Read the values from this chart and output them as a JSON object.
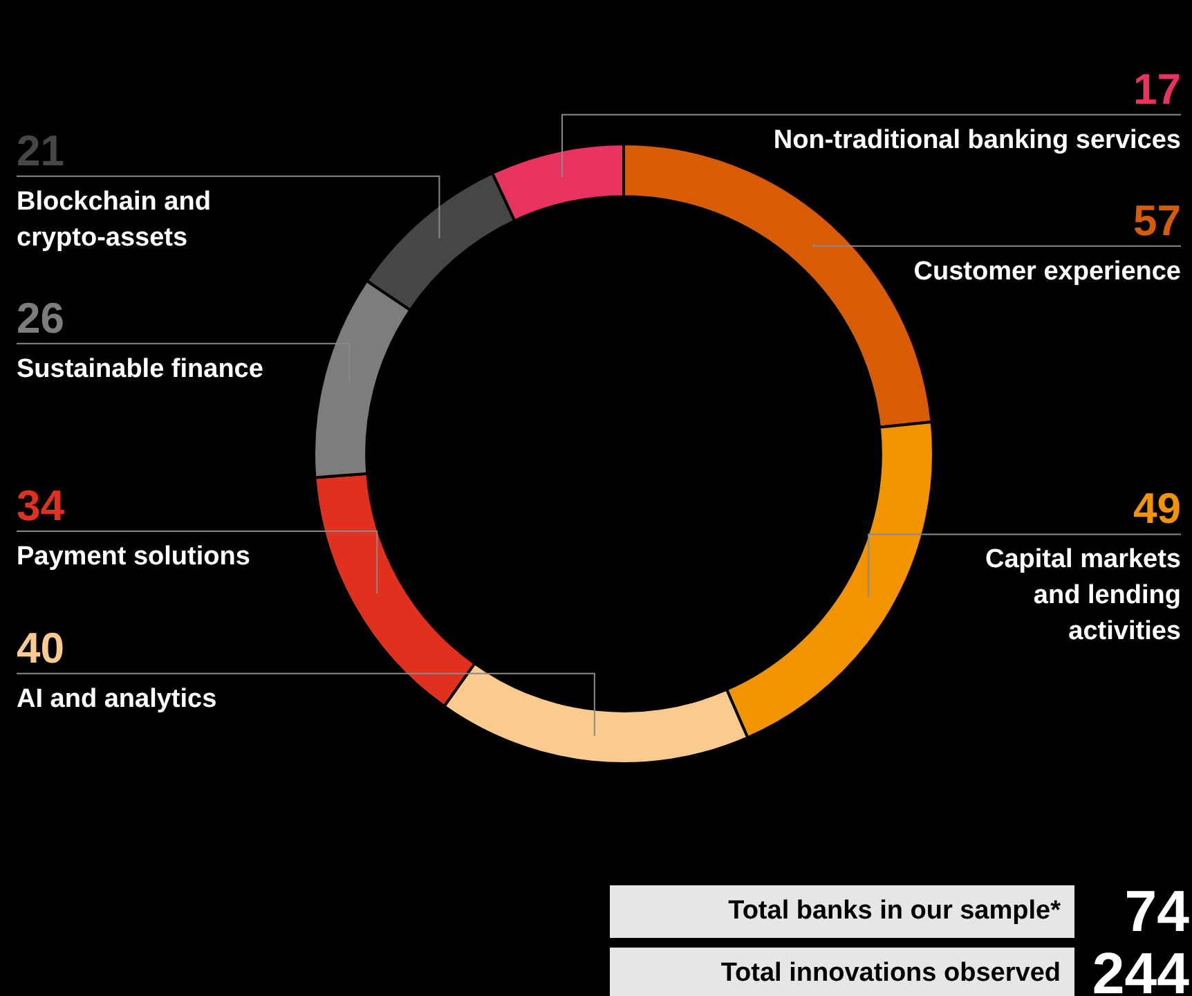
{
  "chart_data": {
    "type": "donut",
    "categories": [
      "Customer experience",
      "Capital markets\nand lending\nactivities",
      "AI and analytics",
      "Payment solutions",
      "Sustainable finance",
      "Blockchain and\ncrypto-assets",
      "Non-traditional banking services"
    ],
    "values": [
      57,
      49,
      40,
      34,
      26,
      21,
      17
    ],
    "colors": [
      "#d85b06",
      "#f29300",
      "#fbca8f",
      "#e0301e",
      "#7d7d7d",
      "#464646",
      "#e8325f"
    ],
    "data_labels": true,
    "legend": false,
    "annotations": [
      "Total banks in our sample*",
      "74",
      "Total innovations observed",
      "244"
    ]
  }
}
